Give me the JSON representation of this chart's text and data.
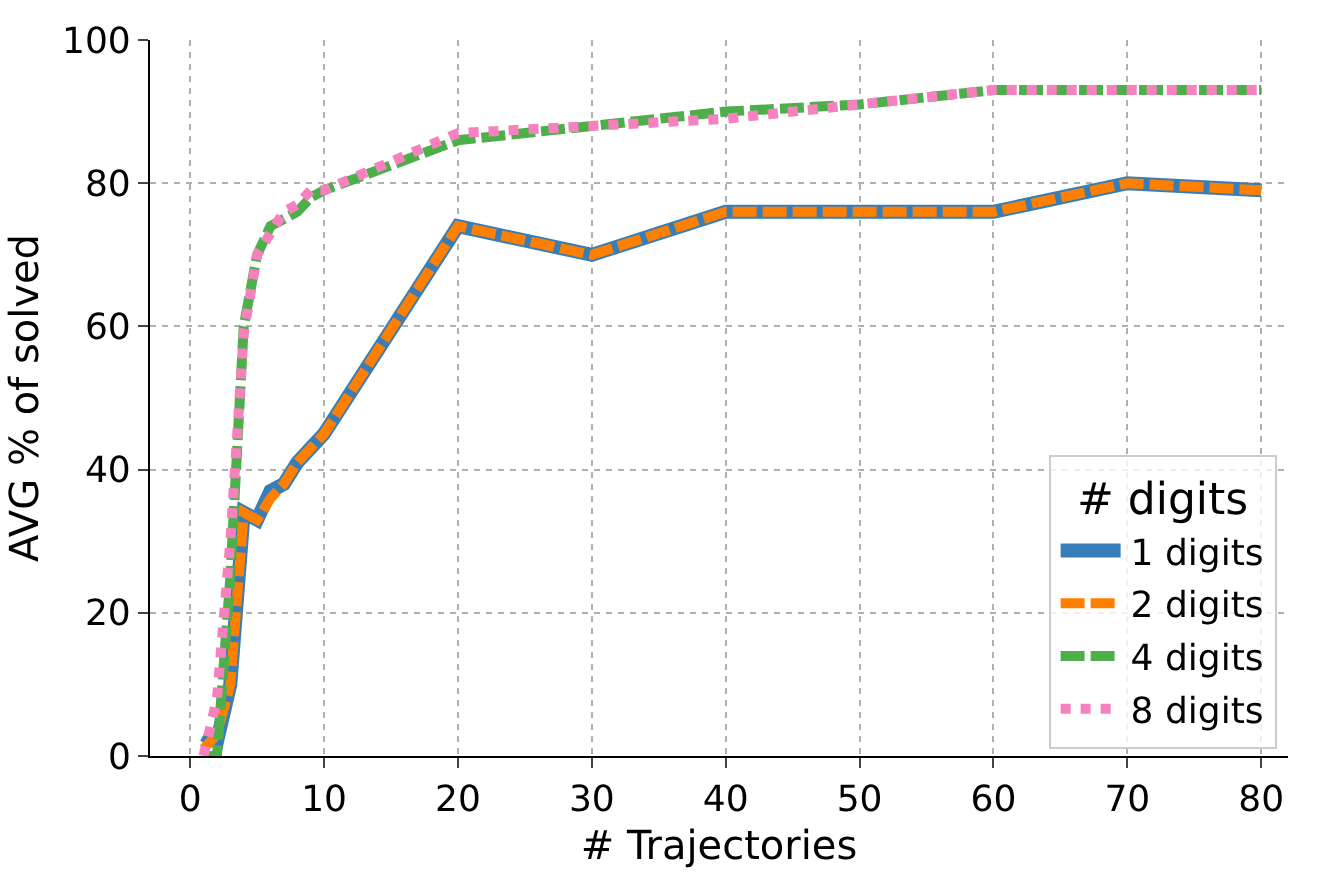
{
  "chart_data": {
    "type": "line",
    "xlabel": "# Trajectories",
    "ylabel": "AVG % of solved",
    "legend_title": "# digits",
    "legend": "bottom right",
    "grid": true,
    "x": [
      1,
      2,
      3,
      4,
      5,
      6,
      7,
      8,
      9,
      10,
      20,
      30,
      40,
      50,
      60,
      70,
      80
    ],
    "xlim": [
      -3,
      82
    ],
    "xticks": [
      0,
      10,
      20,
      30,
      40,
      50,
      60,
      70,
      80
    ],
    "ylim": [
      0,
      100
    ],
    "yticks": [
      0,
      20,
      40,
      60,
      80,
      100
    ],
    "series": [
      {
        "name": "1 digits",
        "color": "#377eb8",
        "line_style": "solid",
        "values": [
          3,
          2,
          10,
          34,
          33,
          37,
          38,
          41,
          43,
          45,
          74,
          70,
          76,
          76,
          76,
          80,
          79
        ]
      },
      {
        "name": "2 digits",
        "color": "#ff7f00",
        "line_style": "dashed",
        "values": [
          1,
          3,
          10,
          34,
          33,
          36,
          38,
          41,
          43,
          45,
          74,
          70,
          76,
          76,
          76,
          80,
          79
        ]
      },
      {
        "name": "4 digits",
        "color": "#4daf4a",
        "line_style": "dashed",
        "values": [
          0,
          0,
          25,
          60,
          70,
          74,
          75,
          76,
          78,
          79,
          86,
          88,
          90,
          91,
          93,
          93,
          93
        ]
      },
      {
        "name": "8 digits",
        "color": "#f781bf",
        "line_style": "dotted",
        "values": [
          0,
          8,
          30,
          59,
          70,
          73,
          76,
          77,
          79,
          79,
          87,
          88,
          89,
          91,
          93,
          93,
          93
        ]
      }
    ]
  }
}
